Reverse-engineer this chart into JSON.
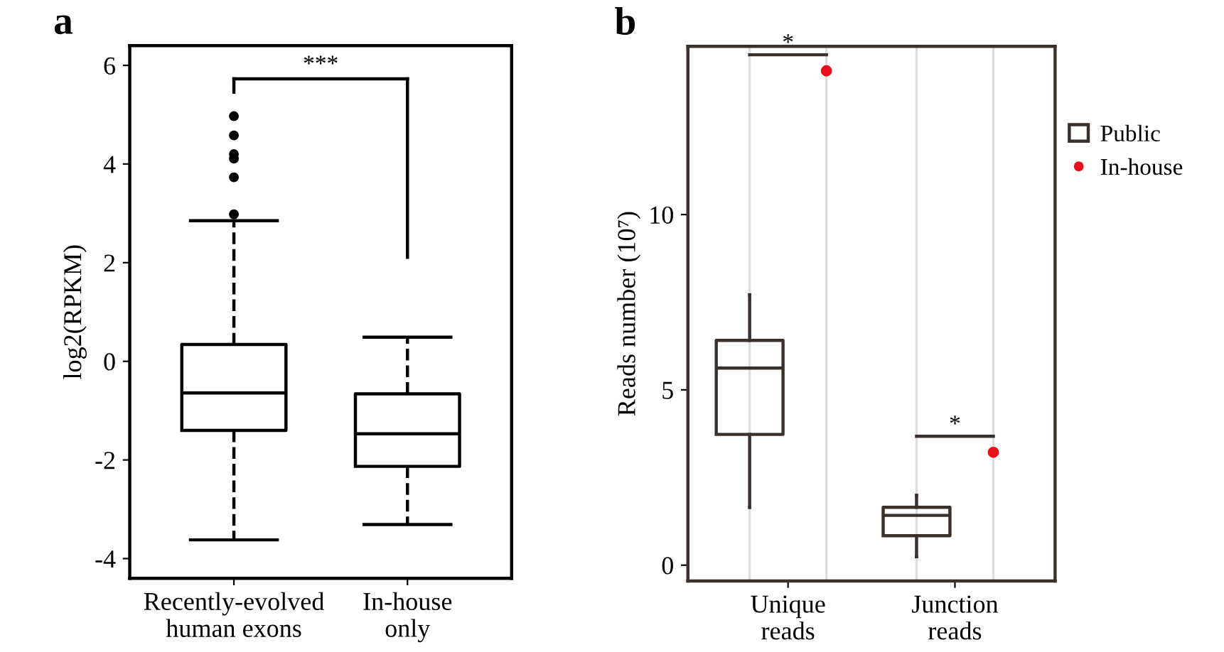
{
  "chart_data": [
    {
      "type": "box",
      "title": "a",
      "ylabel": "log2(RPKM)",
      "categories": [
        "Recently-evolved\nhuman exons",
        "In-house\nonly"
      ],
      "ylim": [
        -4.4,
        6.4
      ],
      "yticks": [
        -4,
        -2,
        0,
        2,
        4,
        6
      ],
      "line_style": "dashed",
      "grid": false,
      "legend": false,
      "annotations": [
        "***"
      ],
      "series": [
        {
          "color": "#000000",
          "boxes": [
            {
              "low": -3.62,
              "q1": -1.4,
              "median": -0.64,
              "q3": 0.34,
              "high": 2.85,
              "outliers": [
                4.97,
                4.58,
                4.2,
                4.11,
                3.73,
                2.98
              ]
            },
            {
              "low": -3.31,
              "q1": -2.13,
              "median": -1.47,
              "q3": -0.66,
              "high": 0.49
            }
          ]
        }
      ]
    },
    {
      "type": "box",
      "title": "b",
      "ylabel": "Reads number (10⁷)",
      "categories": [
        "Unique\nreads",
        "Junction\nreads"
      ],
      "ylim": [
        -0.45,
        14.8
      ],
      "yticks": [
        0,
        5,
        10
      ],
      "line_style": "solid",
      "grid": "x",
      "legend": "right",
      "annotations": [
        "*",
        "*"
      ],
      "series": [
        {
          "name": "Public",
          "type": "box",
          "color": "#3a302c",
          "boxes": [
            {
              "low": 1.65,
              "q1": 3.73,
              "median": 5.62,
              "q3": 6.41,
              "high": 7.71
            },
            {
              "low": 0.24,
              "q1": 0.84,
              "median": 1.42,
              "q3": 1.65,
              "high": 1.99
            }
          ]
        },
        {
          "name": "In-house",
          "type": "scatter",
          "color": "#e8101a",
          "values": [
            14.1,
            3.22
          ]
        }
      ]
    }
  ]
}
